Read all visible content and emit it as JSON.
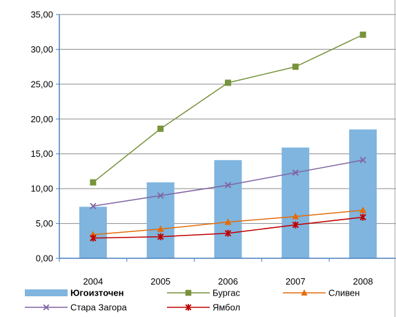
{
  "chart_data": {
    "type": "bar",
    "title": "",
    "xlabel": "",
    "ylabel": "",
    "categories": [
      "2004",
      "2005",
      "2006",
      "2007",
      "2008"
    ],
    "ylim": [
      0,
      35
    ],
    "y_ticks": [
      "0,00",
      "5,00",
      "10,00",
      "15,00",
      "20,00",
      "25,00",
      "30,00",
      "35,00"
    ],
    "grid": true,
    "legend_position": "bottom",
    "series": [
      {
        "name": "Югоизточен",
        "type": "bar",
        "color": "#7fb5df",
        "values": [
          7.4,
          10.9,
          14.1,
          15.9,
          18.5
        ]
      },
      {
        "name": "Бургас",
        "type": "line",
        "marker": "square",
        "color": "#77933c",
        "values": [
          10.9,
          18.6,
          25.2,
          27.5,
          32.1
        ]
      },
      {
        "name": "Сливен",
        "type": "line",
        "marker": "triangle",
        "color": "#e46c0a",
        "values": [
          3.4,
          4.2,
          5.2,
          6.0,
          6.9
        ]
      },
      {
        "name": "Стара Загора",
        "type": "line",
        "marker": "x",
        "color": "#8064a2",
        "values": [
          7.5,
          9.0,
          10.5,
          12.3,
          14.1
        ]
      },
      {
        "name": "Ямбол",
        "type": "line",
        "marker": "star",
        "color": "#c00000",
        "values": [
          2.9,
          3.1,
          3.6,
          4.8,
          5.9
        ]
      }
    ]
  }
}
